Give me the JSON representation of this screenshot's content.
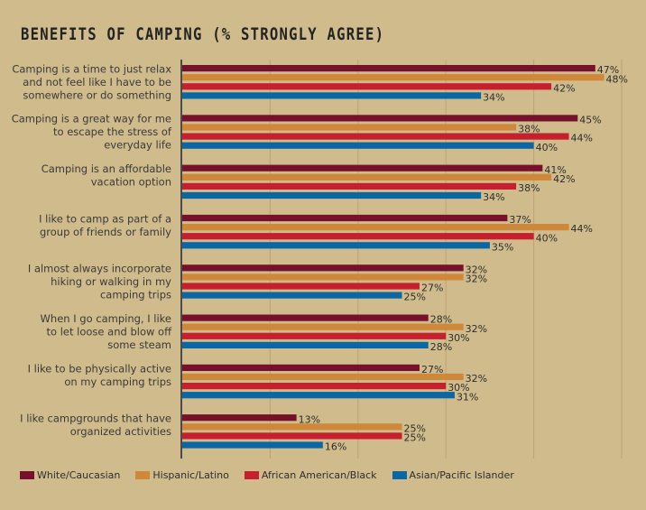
{
  "chart_data": {
    "type": "bar",
    "orientation": "horizontal",
    "title": "BENEFITS OF CAMPING (% STRONGLY AGREE)",
    "xlabel": "",
    "ylabel": "",
    "xlim": [
      0,
      50
    ],
    "grid_x_ticks": [
      10,
      20,
      30,
      40,
      50
    ],
    "grid": true,
    "legend_position": "bottom",
    "value_suffix": "%",
    "categories": [
      [
        "Camping is a time to just relax",
        "and not feel like I have to be",
        "somewhere or do something"
      ],
      [
        "Camping is a great way for me",
        "to escape the stress of",
        "everyday life"
      ],
      [
        "Camping is an affordable",
        "vacation option"
      ],
      [
        "I like to camp as part of a",
        "group of friends or family"
      ],
      [
        "I almost always incorporate",
        "hiking or walking in my",
        "camping trips"
      ],
      [
        "When I go camping, I like",
        "to let loose and blow off",
        "some steam"
      ],
      [
        "I like to be physically active",
        "on my camping trips"
      ],
      [
        "I like campgrounds that have",
        "organized activities"
      ]
    ],
    "series": [
      {
        "name": "White/Caucasian",
        "color": "#76112b",
        "values": [
          47,
          45,
          41,
          37,
          32,
          28,
          27,
          13
        ]
      },
      {
        "name": "Hispanic/Latino",
        "color": "#cf883a",
        "values": [
          48,
          38,
          42,
          44,
          32,
          32,
          32,
          25
        ]
      },
      {
        "name": "African American/Black",
        "color": "#c61f2e",
        "values": [
          42,
          44,
          38,
          40,
          27,
          30,
          30,
          25
        ]
      },
      {
        "name": "Asian/Pacific Islander",
        "color": "#0b67a3",
        "values": [
          34,
          40,
          34,
          35,
          25,
          28,
          31,
          16
        ]
      }
    ]
  },
  "colors": {
    "background": "#cfbb8b",
    "axis": "#4a4a4a",
    "gridline": "#bfa275"
  }
}
